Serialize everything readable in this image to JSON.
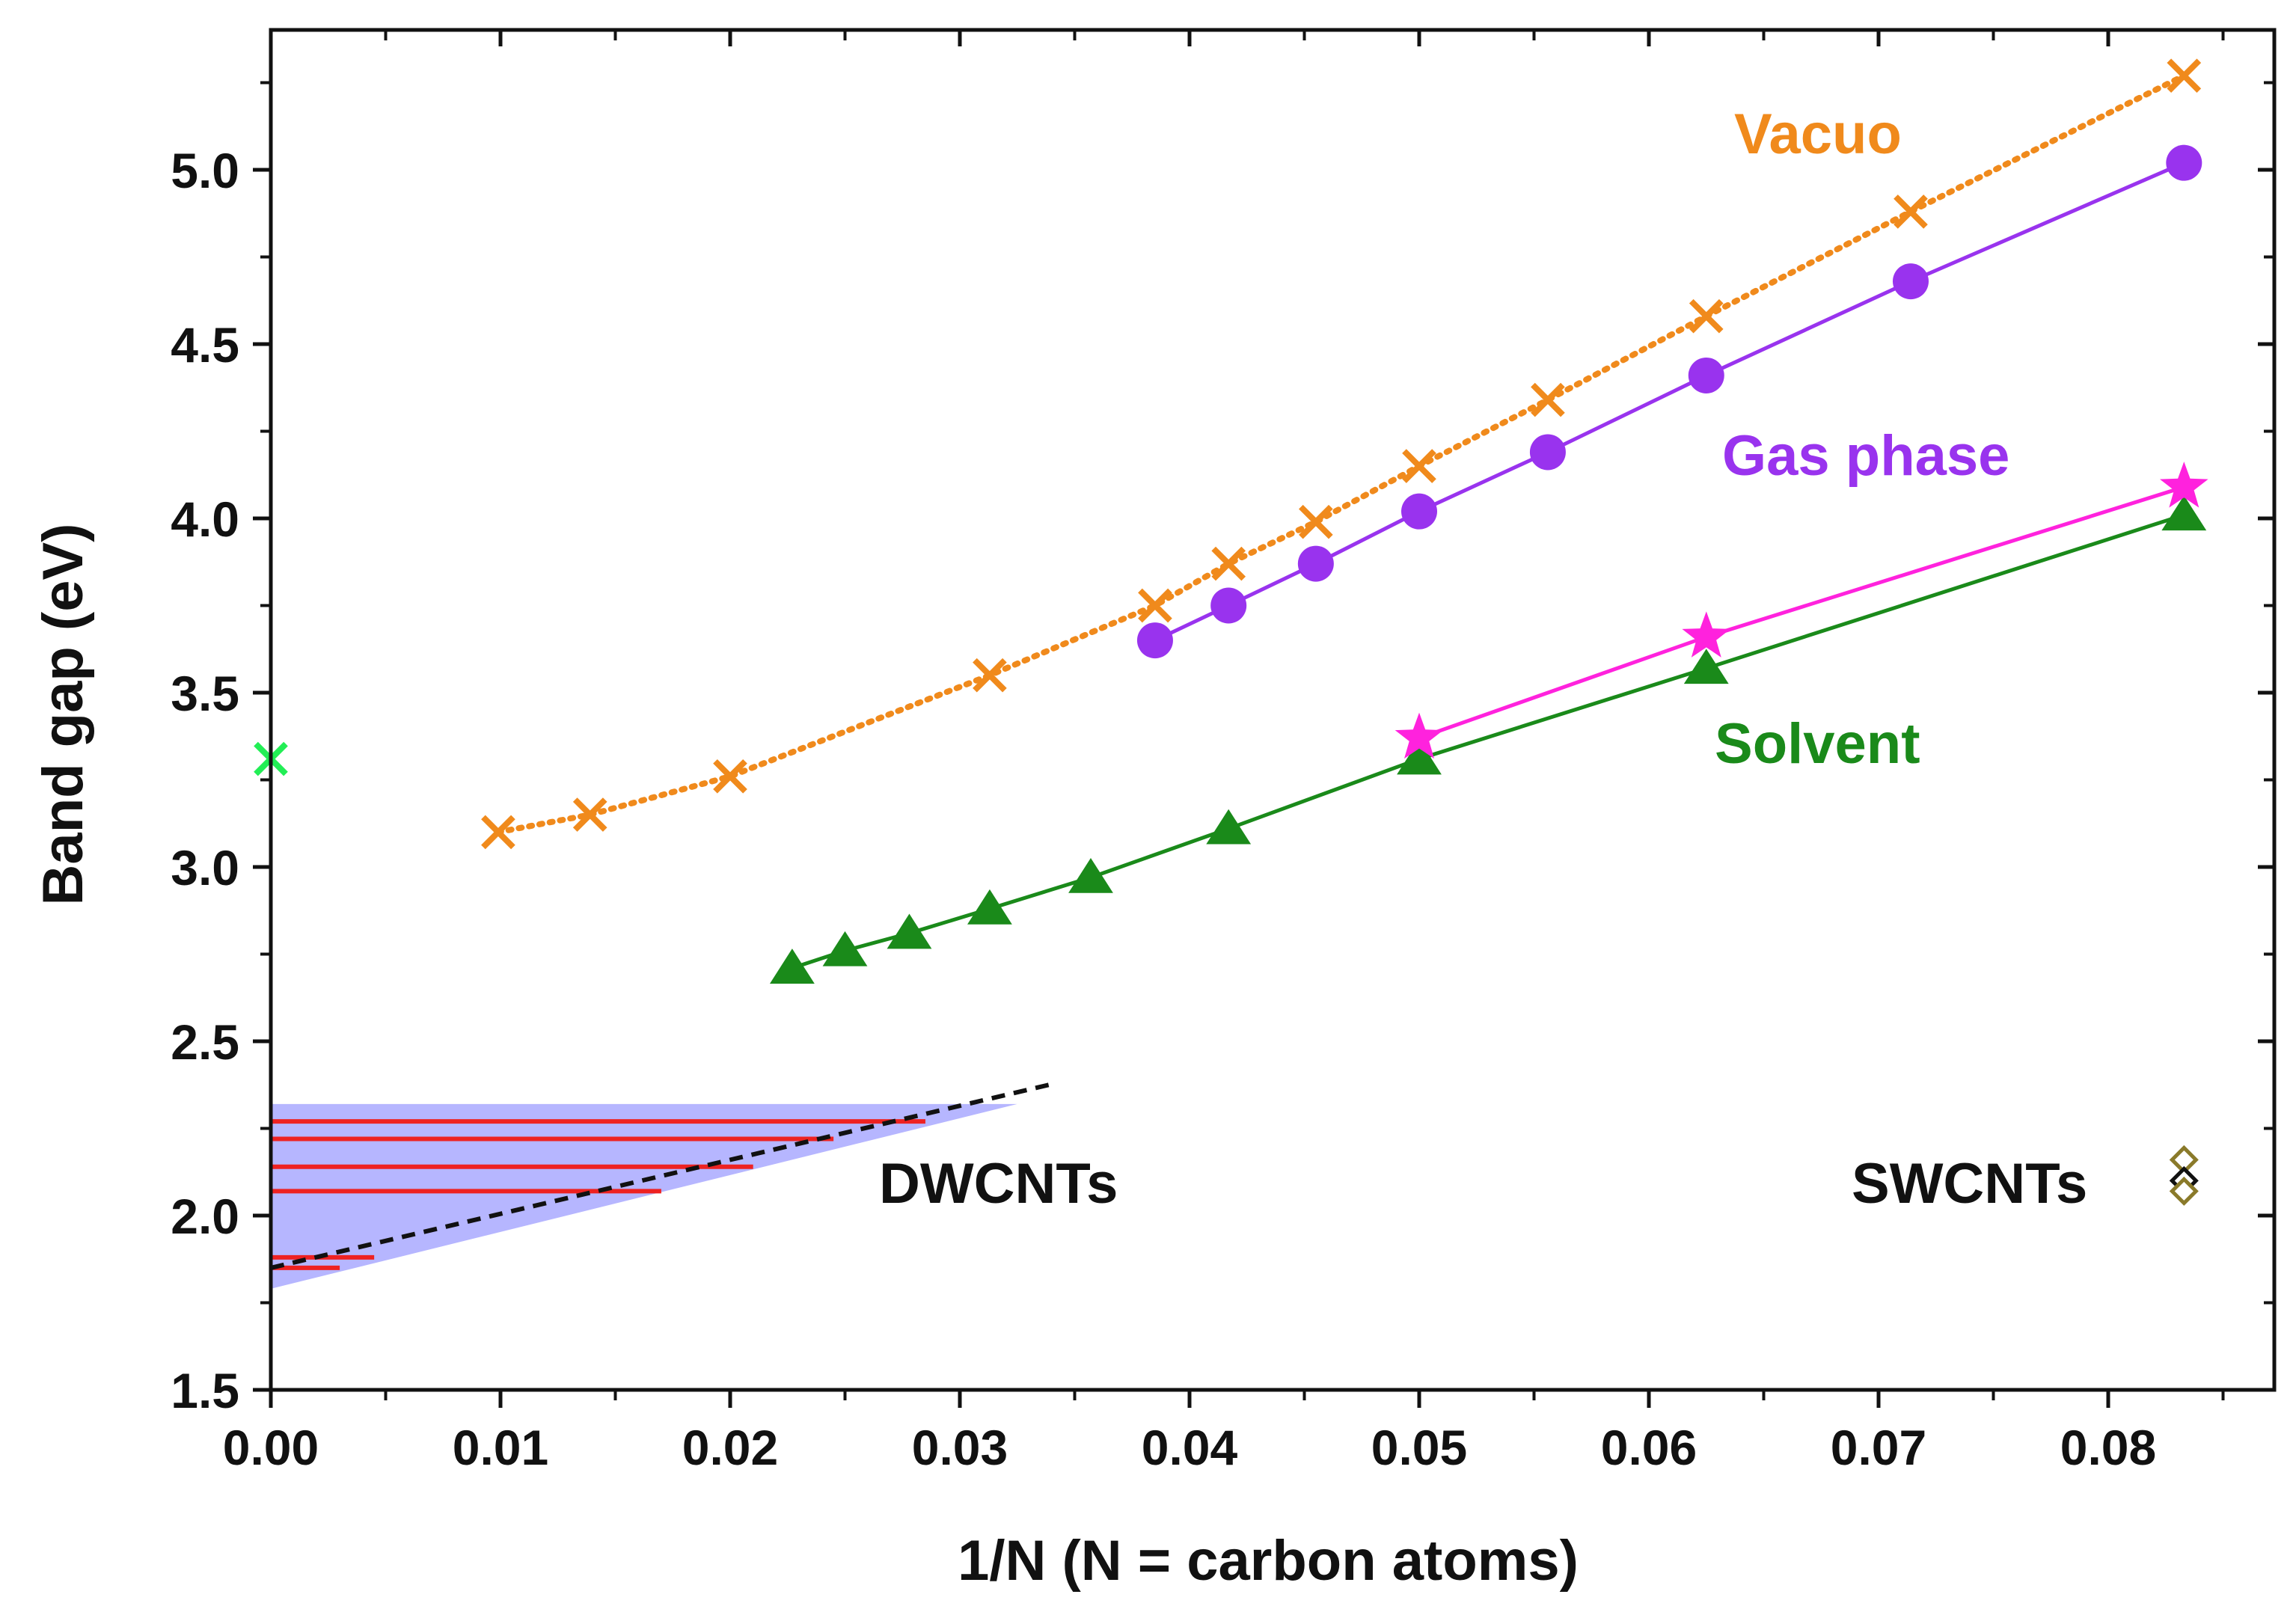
{
  "chart_data": {
    "type": "scatter",
    "xlabel": "1/N (N = carbon atoms)",
    "ylabel": "Band gap (eV)",
    "xlim": [
      0,
      0.087
    ],
    "ylim": [
      1.5,
      5.4
    ],
    "x_ticks": [
      0.0,
      0.01,
      0.02,
      0.03,
      0.04,
      0.05,
      0.06,
      0.07,
      0.08
    ],
    "x_tick_labels": [
      "0.00",
      "0.01",
      "0.02",
      "0.03",
      "0.04",
      "0.05",
      "0.06",
      "0.07",
      "0.08"
    ],
    "y_ticks": [
      1.5,
      2.0,
      2.5,
      3.0,
      3.5,
      4.0,
      4.5,
      5.0
    ],
    "y_tick_labels": [
      "1.5",
      "2.0",
      "2.5",
      "3.0",
      "3.5",
      "4.0",
      "4.5",
      "5.0"
    ],
    "grid": false,
    "series": [
      {
        "name": "Vacuo",
        "color": "#f08a1c",
        "marker": "x",
        "line": "dotted",
        "x": [
          0.0099,
          0.0139,
          0.02,
          0.0313,
          0.0385,
          0.0417,
          0.0455,
          0.05,
          0.0556,
          0.0625,
          0.0714,
          0.0833
        ],
        "y": [
          3.1,
          3.15,
          3.26,
          3.55,
          3.75,
          3.87,
          3.99,
          4.15,
          4.34,
          4.58,
          4.88,
          5.27
        ]
      },
      {
        "name": "Gas phase",
        "color": "#9933ee",
        "marker": "circle",
        "line": "solid",
        "x": [
          0.0385,
          0.0417,
          0.0455,
          0.05,
          0.0556,
          0.0625,
          0.0714,
          0.0833
        ],
        "y": [
          3.65,
          3.75,
          3.87,
          4.02,
          4.19,
          4.41,
          4.68,
          5.02
        ]
      },
      {
        "name": "Solvent",
        "color": "#1a8a1a",
        "marker": "triangle",
        "line": "solid",
        "x": [
          0.0227,
          0.025,
          0.0278,
          0.0313,
          0.0357,
          0.0417,
          0.05,
          0.0625,
          0.0833
        ],
        "y": [
          2.71,
          2.76,
          2.81,
          2.88,
          2.97,
          3.11,
          3.31,
          3.57,
          4.01
        ]
      },
      {
        "color": "#ff22dd",
        "marker": "star",
        "line": "solid",
        "x": [
          0.05,
          0.0625,
          0.0833
        ],
        "y": [
          3.37,
          3.66,
          4.09
        ]
      },
      {
        "color": "#22ee55",
        "marker": "x",
        "line": "none",
        "x": [
          0.0
        ],
        "y": [
          3.31
        ]
      },
      {
        "name": "SWCNTs",
        "color": "#333333",
        "marker": "diamond",
        "line": "none",
        "x": [
          0.0833,
          0.0833,
          0.0833
        ],
        "y": [
          2.16,
          2.1,
          2.07
        ]
      }
    ],
    "dwcnt": {
      "label": "DWCNTs",
      "band_color": "#b6b6ff",
      "band_top": 2.32,
      "band_left_bottom": 1.79,
      "band_right_x": 0.0325,
      "line_color": "#ee2222",
      "red_lines": [
        {
          "y": 2.27,
          "x_end": 0.0285
        },
        {
          "y": 2.22,
          "x_end": 0.0245
        },
        {
          "y": 2.14,
          "x_end": 0.021
        },
        {
          "y": 2.07,
          "x_end": 0.017
        },
        {
          "y": 1.88,
          "x_end": 0.0045
        },
        {
          "y": 1.85,
          "x_end": 0.003
        }
      ],
      "fit_line": {
        "x": [
          0.0,
          0.0342
        ],
        "y": [
          1.85,
          2.38
        ],
        "color": "#111111"
      }
    },
    "annotations": [
      {
        "text": "Vacuo",
        "color": "#f08a1c"
      },
      {
        "text": "Gas phase",
        "color": "#9933ee"
      },
      {
        "text": "Solvent",
        "color": "#1a8a1a"
      },
      {
        "text": "DWCNTs",
        "color": "#111111"
      },
      {
        "text": "SWCNTs",
        "color": "#111111"
      }
    ]
  }
}
